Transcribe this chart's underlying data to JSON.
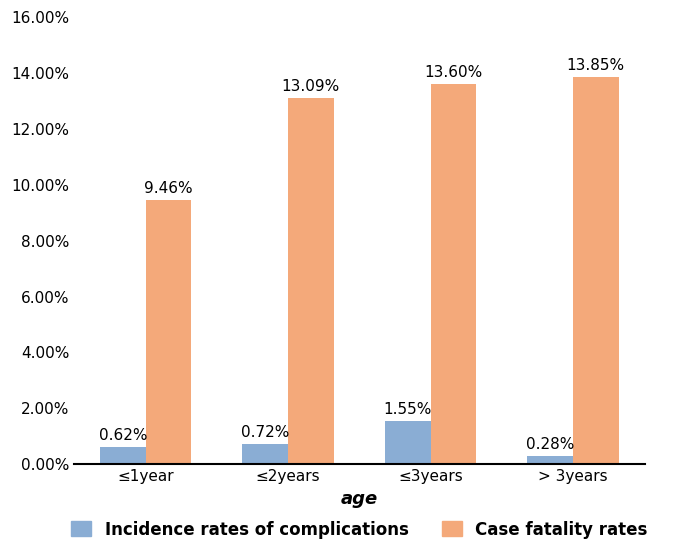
{
  "categories": [
    "≤1year",
    "≤2years",
    "≤3years",
    "> 3years"
  ],
  "incidence_rates": [
    0.0062,
    0.0072,
    0.0155,
    0.0028
  ],
  "fatality_rates": [
    0.0946,
    0.1309,
    0.136,
    0.1385
  ],
  "incidence_labels": [
    "0.62%",
    "0.72%",
    "1.55%",
    "0.28%"
  ],
  "fatality_labels": [
    "9.46%",
    "13.09%",
    "13.60%",
    "13.85%"
  ],
  "bar_color_incidence": "#8aadd4",
  "bar_color_fatality": "#f4a97a",
  "xlabel": "age",
  "ylim": [
    0,
    0.16
  ],
  "yticks": [
    0.0,
    0.02,
    0.04,
    0.06,
    0.08,
    0.1,
    0.12,
    0.14,
    0.16
  ],
  "ytick_labels": [
    "0.00%",
    "2.00%",
    "4.00%",
    "6.00%",
    "8.00%",
    "10.00%",
    "12.00%",
    "14.00%",
    "16.00%"
  ],
  "legend_incidence": "Incidence rates of complications",
  "legend_fatality": "Case fatality rates",
  "bar_width": 0.32,
  "tick_fontsize": 11,
  "xlabel_fontsize": 13,
  "legend_fontsize": 12,
  "annotation_fontsize": 11
}
